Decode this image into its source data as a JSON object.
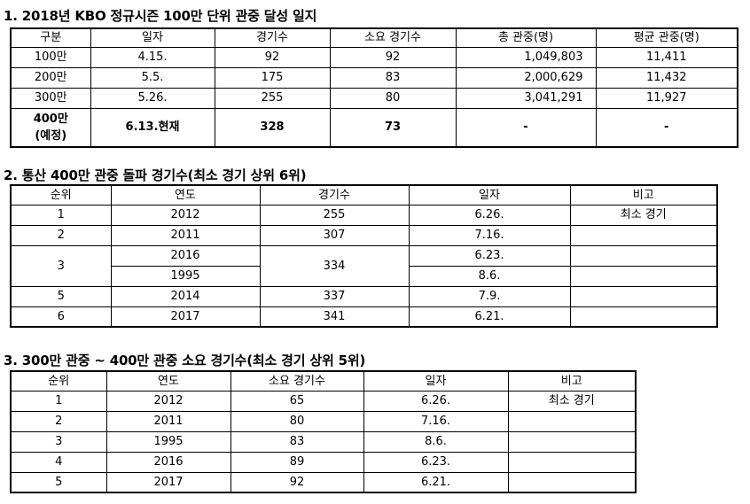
{
  "section1": {
    "heading": "1. 2018년 KBO 정규시즌 100만 단위 관중 달성 일지",
    "headers": [
      "구분",
      "일자",
      "경기수",
      "소요 경기수",
      "총 관중(명)",
      "평균 관중(명)"
    ],
    "rows": [
      [
        "100만",
        "4.15.",
        "92",
        "92",
        "1,049,803",
        "11,411"
      ],
      [
        "200만",
        "5.5.",
        "175",
        "83",
        "2,000,629",
        "11,432"
      ],
      [
        "300만",
        "5.26.",
        "255",
        "80",
        "3,041,291",
        "11,927"
      ]
    ],
    "projected": {
      "label_line1": "400만",
      "label_line2": "(예정)",
      "date": "6.13.현재",
      "games": "328",
      "required_games": "73",
      "total": "-",
      "average": "-"
    }
  },
  "section2": {
    "heading": "2. 통산 400만 관중 돌파 경기수(최소 경기 상위 6위)",
    "headers": [
      "순위",
      "연도",
      "경기수",
      "일자",
      "비고"
    ],
    "rows": [
      {
        "rank": "1",
        "year": "2012",
        "games": "255",
        "date": "6.26.",
        "note": "최소 경기"
      },
      {
        "rank": "2",
        "year": "2011",
        "games": "307",
        "date": "7.16.",
        "note": ""
      },
      {
        "rank": "3",
        "year": "2016",
        "games": "334",
        "date": "6.23.",
        "note": ""
      },
      {
        "rank": "",
        "year": "1995",
        "games": "",
        "date": "8.6.",
        "note": ""
      },
      {
        "rank": "5",
        "year": "2014",
        "games": "337",
        "date": "7.9.",
        "note": ""
      },
      {
        "rank": "6",
        "year": "2017",
        "games": "341",
        "date": "6.21.",
        "note": ""
      }
    ]
  },
  "section3": {
    "heading": "3. 300만 관중 ~ 400만 관중 소요 경기수(최소 경기 상위 5위)",
    "headers": [
      "순위",
      "연도",
      "소요 경기수",
      "일자",
      "비고"
    ],
    "rows": [
      {
        "rank": "1",
        "year": "2012",
        "games": "65",
        "date": "6.26.",
        "note": "최소 경기"
      },
      {
        "rank": "2",
        "year": "2011",
        "games": "80",
        "date": "7.16.",
        "note": ""
      },
      {
        "rank": "3",
        "year": "1995",
        "games": "83",
        "date": "8.6.",
        "note": ""
      },
      {
        "rank": "4",
        "year": "2016",
        "games": "89",
        "date": "6.23.",
        "note": ""
      },
      {
        "rank": "5",
        "year": "2017",
        "games": "92",
        "date": "6.21.",
        "note": ""
      }
    ]
  }
}
